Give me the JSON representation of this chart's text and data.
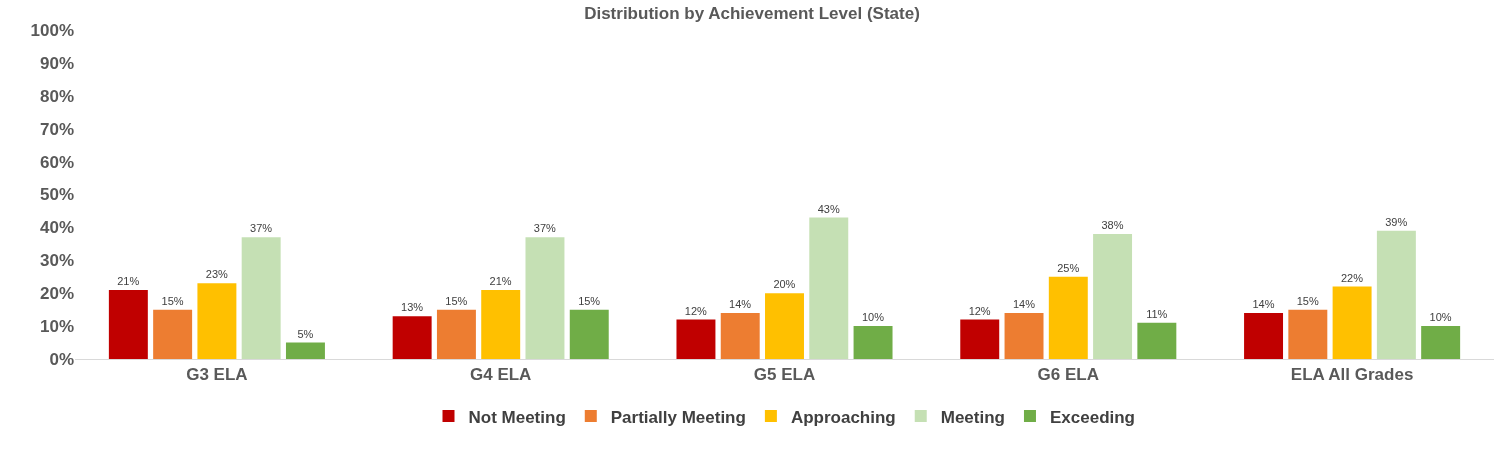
{
  "chart_data": {
    "type": "bar",
    "title": "Distribution by Achievement Level (State)",
    "categories": [
      "G3 ELA",
      "G4 ELA",
      "G5 ELA",
      "G6 ELA",
      "ELA All Grades"
    ],
    "series": [
      {
        "name": "Not Meeting",
        "color": "#c00000",
        "values": [
          21,
          13,
          12,
          12,
          14
        ],
        "value_labels": [
          "21%",
          "13%",
          "12%",
          "12%",
          "14%"
        ]
      },
      {
        "name": "Partially Meeting",
        "color": "#ed7d31",
        "values": [
          15,
          15,
          14,
          14,
          15
        ],
        "value_labels": [
          "15%",
          "15%",
          "14%",
          "14%",
          "15%"
        ]
      },
      {
        "name": "Approaching",
        "color": "#ffc000",
        "values": [
          23,
          21,
          20,
          25,
          22
        ],
        "value_labels": [
          "23%",
          "21%",
          "20%",
          "25%",
          "22%"
        ]
      },
      {
        "name": "Meeting",
        "color": "#c5e0b4",
        "values": [
          37,
          37,
          43,
          38,
          39
        ],
        "value_labels": [
          "37%",
          "37%",
          "43%",
          "38%",
          "39%"
        ]
      },
      {
        "name": "Exceeding",
        "color": "#70ad47",
        "values": [
          5,
          15,
          10,
          11,
          10
        ],
        "value_labels": [
          "5%",
          "15%",
          "10%",
          "11%",
          "10%"
        ]
      }
    ],
    "ylim": [
      0,
      100
    ],
    "yticks": [
      {
        "value": 0,
        "label": "0%"
      },
      {
        "value": 10,
        "label": "10%"
      },
      {
        "value": 20,
        "label": "20%"
      },
      {
        "value": 30,
        "label": "30%"
      },
      {
        "value": 40,
        "label": "40%"
      },
      {
        "value": 50,
        "label": "50%"
      },
      {
        "value": 60,
        "label": "60%"
      },
      {
        "value": 70,
        "label": "70%"
      },
      {
        "value": 80,
        "label": "80%"
      },
      {
        "value": 90,
        "label": "90%"
      },
      {
        "value": 100,
        "label": "100%"
      }
    ],
    "grid": false,
    "legend": "bottom"
  }
}
